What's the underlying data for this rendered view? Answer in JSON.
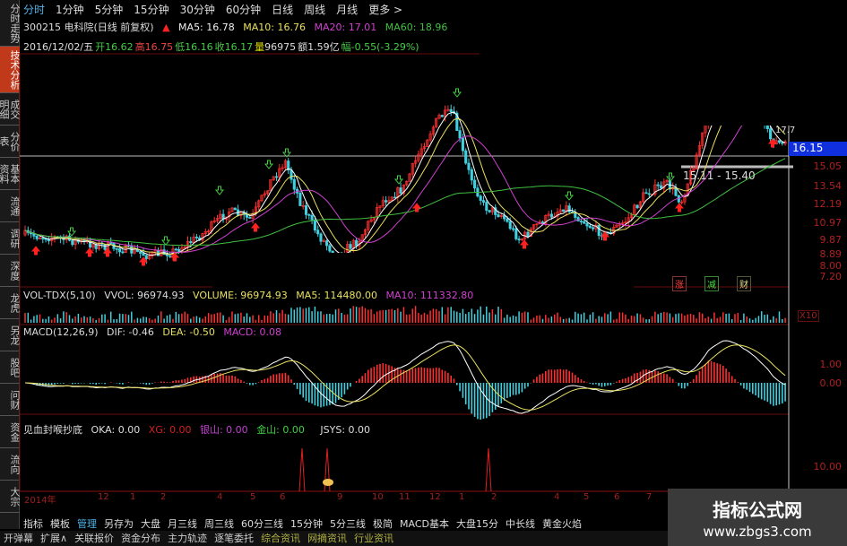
{
  "side_tabs": [
    "分时走势",
    "技术分析",
    "成交明细",
    "分价表",
    "基本资料",
    "流通",
    "调研",
    "深度",
    "龙虎",
    "另龙",
    "股吧",
    "问财",
    "资金",
    "流向",
    "大宗"
  ],
  "side_active": 1,
  "period_tabs": [
    "分时",
    "1分钟",
    "5分钟",
    "15分钟",
    "30分钟",
    "60分钟",
    "日线",
    "周线",
    "月线",
    "更多 >"
  ],
  "header": {
    "stock": "300215 电科院(日线 前复权)",
    "ma5": "MA5: 16.78",
    "ma10": "MA10: 16.76",
    "ma20": "MA20: 17.01",
    "ma60": "MA60: 18.96"
  },
  "quote": {
    "date": "2016/12/02/五",
    "open_l": "开",
    "open": "16.62",
    "high_l": "高",
    "high": "16.75",
    "low_l": "低",
    "low": "16.16",
    "close_l": "收",
    "close": "16.17",
    "vol_l": "量",
    "vol": "96975",
    "amt_l": "额",
    "amt": "1.59亿",
    "chg_l": "幅",
    "chg": "-0.55(-3.29%)"
  },
  "price_axis": {
    "current": "16.15",
    "ticks": [
      "15.05",
      "13.54",
      "12.19",
      "10.97",
      "9.87",
      "8.89",
      "8.00",
      "7.20"
    ],
    "peak_label": "17.7",
    "range_label": "15.11 - 15.40"
  },
  "legend_tags": [
    "涨",
    "减",
    "财"
  ],
  "volume": {
    "title": "VOL-TDX(5,10)",
    "vvol": "VVOL: 96974.93",
    "volume": "VOLUME: 96974.93",
    "ma5": "MA5: 114480.00",
    "ma10": "MA10: 111332.80",
    "scale": "X10"
  },
  "macd": {
    "title": "MACD(12,26,9)",
    "dif": "DIF: -0.46",
    "dea": "DEA: -0.50",
    "macd": "MACD: 0.08",
    "ticks": [
      "1.00",
      "0.00"
    ]
  },
  "indicator": {
    "title": "见血封喉抄底",
    "oka": "OKA: 0.00",
    "xg": "XG: 0.00",
    "yinshan": "银山: 0.00",
    "jinshan": "金山: 0.00",
    "jsys": "JSYS: 0.00",
    "tick": "10.00"
  },
  "time_axis": [
    "2014年",
    "12",
    "1",
    "2",
    "4",
    "5",
    "6",
    "9",
    "10",
    "11",
    "12",
    "1",
    "2",
    "4",
    "5",
    "6",
    "7"
  ],
  "toolbar1": [
    "指标",
    "模板",
    "管理",
    "另存为",
    "大盘",
    "月三线",
    "周三线",
    "60分三线",
    "15分钟",
    "5分三线",
    "极简",
    "MACD基本",
    "大盘15分",
    "中长线",
    "黄金火焰"
  ],
  "toolbar1_active": 2,
  "toolbar2": [
    "开弹幕",
    "扩展∧",
    "关联报价",
    "资金分布",
    "主力轨迹",
    "逐笔委托",
    "综合资讯",
    "网摘资讯",
    "行业资讯"
  ],
  "watermark": {
    "title": "指标公式网",
    "url": "www.zbgs3.com"
  },
  "colors": {
    "up": "#ff3030",
    "down": "#40d0e0",
    "ma5": "#ffffff",
    "ma10": "#e8e060",
    "ma20": "#d040d0",
    "ma60": "#40c040",
    "accent": "#c0391b",
    "current_price_bg": "#1030e0"
  }
}
